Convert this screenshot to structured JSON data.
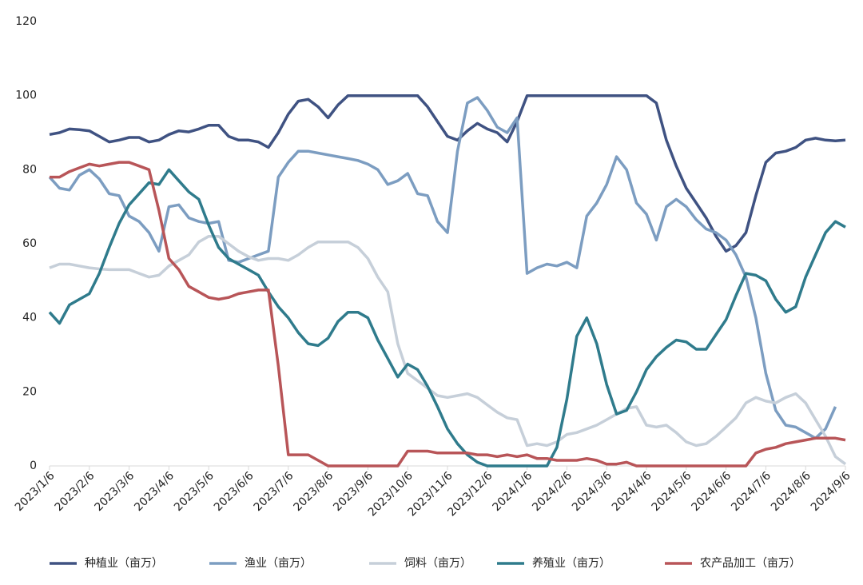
{
  "chart_data": {
    "type": "line",
    "categories": [
      "2023/1/6",
      null,
      null,
      null,
      "2023/2/6",
      null,
      null,
      null,
      "2023/3/6",
      null,
      null,
      null,
      "2023/4/6",
      null,
      null,
      null,
      "2023/5/6",
      null,
      null,
      null,
      "2023/6/6",
      null,
      null,
      null,
      "2023/7/6",
      null,
      null,
      null,
      "2023/8/6",
      null,
      null,
      null,
      "2023/9/6",
      null,
      null,
      null,
      "2023/10/6",
      null,
      null,
      null,
      "2023/11/6",
      null,
      null,
      null,
      "2023/12/6",
      null,
      null,
      null,
      "2024/1/6",
      null,
      null,
      null,
      "2024/2/6",
      null,
      null,
      null,
      "2024/3/6",
      null,
      null,
      null,
      "2024/4/6",
      null,
      null,
      null,
      "2024/5/6",
      null,
      null,
      null,
      "2024/6/6",
      null,
      null,
      null,
      "2024/7/6",
      null,
      null,
      null,
      "2024/8/6",
      null,
      null,
      null,
      "2024/9/6"
    ],
    "series": [
      {
        "name": "种植业（亩万）",
        "color": "#3f5282",
        "values": [
          89.5,
          90,
          91,
          90.8,
          90.5,
          89,
          87.5,
          88,
          88.7,
          88.7,
          87.5,
          88,
          89.5,
          90.5,
          90.2,
          91,
          92,
          92,
          89,
          88,
          88,
          87.5,
          86,
          90,
          95,
          98.5,
          99,
          97,
          94,
          97.5,
          100,
          100,
          100,
          100,
          100,
          100,
          100,
          100,
          97,
          93,
          89,
          88,
          90.5,
          92.5,
          91,
          90,
          87.5,
          93,
          100,
          100,
          100,
          100,
          100,
          100,
          100,
          100,
          100,
          100,
          100,
          100,
          100,
          98,
          88,
          81,
          75,
          71,
          67,
          62,
          58,
          59.5,
          63,
          73,
          82,
          84.5,
          85,
          86,
          88,
          88.5,
          88,
          87.8,
          88
        ]
      },
      {
        "name": "渔业（亩万）",
        "color": "#7c9dc1",
        "values": [
          78,
          75,
          74.5,
          78.5,
          80,
          77.5,
          73.5,
          73,
          67.5,
          66,
          63,
          58,
          70,
          70.5,
          67,
          66,
          65.5,
          66,
          55.5,
          55,
          56,
          57,
          58,
          78,
          82,
          85,
          85,
          84.5,
          84,
          83.5,
          83,
          82.5,
          81.5,
          80,
          76,
          77,
          79,
          73.5,
          73,
          66,
          63,
          85,
          98,
          99.5,
          96,
          91.5,
          90,
          94,
          52,
          53.5,
          54.5,
          54,
          55,
          53.5,
          67.5,
          71,
          76,
          83.5,
          80,
          71,
          68,
          61,
          70,
          72,
          70,
          66.5,
          64,
          63,
          61,
          57,
          51,
          40,
          25,
          15,
          11,
          10.5,
          9,
          7.5,
          10,
          16,
          null
        ]
      },
      {
        "name": "饲料（亩万）",
        "color": "#c6cfd9",
        "values": [
          53.5,
          54.5,
          54.5,
          54,
          53.5,
          53.2,
          53,
          53,
          53,
          52,
          51,
          51.5,
          54,
          55.5,
          57,
          60.5,
          62,
          62,
          60,
          58,
          56.5,
          55.5,
          56,
          56,
          55.5,
          57,
          59,
          60.5,
          60.5,
          60.5,
          60.5,
          59,
          56,
          51,
          47,
          33,
          25,
          23,
          21,
          19,
          18.5,
          19,
          19.5,
          18.5,
          16.5,
          14.5,
          13,
          12.5,
          5.5,
          6,
          5.5,
          6.5,
          8.5,
          9,
          10,
          11,
          12.5,
          14,
          15.5,
          16,
          11,
          10.5,
          11,
          9,
          6.5,
          5.5,
          6,
          8,
          10.5,
          13,
          17,
          18.5,
          17.5,
          17,
          18.5,
          19.5,
          17,
          12.5,
          8,
          2.5,
          0.5
        ]
      },
      {
        "name": "养殖业（亩万）",
        "color": "#2f7b8c",
        "values": [
          41.5,
          38.5,
          43.5,
          45,
          46.5,
          52,
          59,
          65.5,
          70.5,
          73.5,
          76.5,
          76,
          80,
          77,
          74,
          72,
          65,
          59,
          56,
          54.5,
          53,
          51.5,
          47,
          43,
          40,
          36,
          33,
          32.5,
          34.5,
          39,
          41.5,
          41.5,
          40,
          34,
          29,
          24,
          27.5,
          26,
          21.5,
          16,
          10,
          6,
          3,
          1,
          0,
          0,
          0,
          0,
          0,
          0,
          0,
          5,
          18,
          35,
          40,
          33,
          22,
          14,
          15,
          20,
          26,
          29.5,
          32,
          34,
          33.5,
          31.5,
          31.5,
          35.5,
          39.5,
          46,
          52,
          51.5,
          50,
          45,
          41.5,
          43,
          51,
          57,
          63,
          66,
          64.5
        ]
      },
      {
        "name": "农产品加工（亩万）",
        "color": "#b85558",
        "values": [
          78,
          78,
          79.5,
          80.5,
          81.5,
          81,
          81.5,
          82,
          82,
          81,
          80,
          69,
          56,
          53,
          48.5,
          47,
          45.5,
          45,
          45.5,
          46.5,
          47,
          47.5,
          47.5,
          27,
          3,
          3,
          3,
          1.5,
          0,
          0,
          0,
          0,
          0,
          0,
          0,
          0,
          4,
          4,
          4,
          3.5,
          3.5,
          3.5,
          3.5,
          3,
          3,
          2.5,
          3,
          2.5,
          3,
          2,
          2,
          1.5,
          1.5,
          1.5,
          2,
          1.5,
          0.5,
          0.5,
          1,
          0,
          0,
          0,
          0,
          0,
          0,
          0,
          0,
          0,
          0,
          0,
          0,
          3.5,
          4.5,
          5,
          6,
          6.5,
          7,
          7.5,
          7.5,
          7.5,
          7
        ]
      }
    ],
    "ylim": [
      0,
      120
    ],
    "yticks": [
      0,
      20,
      40,
      60,
      80,
      100,
      120
    ],
    "grid": false,
    "legend": "bottom"
  }
}
